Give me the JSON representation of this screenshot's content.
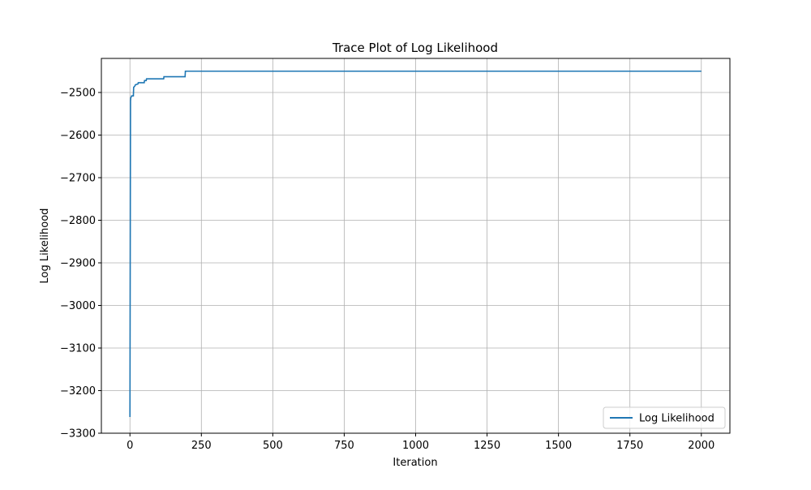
{
  "chart_data": {
    "type": "line",
    "title": "Trace Plot of Log Likelihood",
    "xlabel": "Iteration",
    "ylabel": "Log Likelihood",
    "xlim": [
      -100,
      2100
    ],
    "ylim": [
      -3300,
      -2420
    ],
    "xticks": [
      0,
      250,
      500,
      750,
      1000,
      1250,
      1500,
      1750,
      2000
    ],
    "yticks": [
      -3300,
      -3200,
      -3100,
      -3000,
      -2900,
      -2800,
      -2700,
      -2600,
      -2500
    ],
    "xtick_labels": [
      "0",
      "250",
      "500",
      "750",
      "1000",
      "1250",
      "1500",
      "1750",
      "2000"
    ],
    "ytick_labels": [
      "−3300",
      "−3200",
      "−3100",
      "−3000",
      "−2900",
      "−2800",
      "−2700",
      "−2600",
      "−2500"
    ],
    "grid": true,
    "legend_position": "lower-right",
    "series": [
      {
        "name": "Log Likelihood",
        "color": "#1f77b4",
        "x": [
          0,
          2,
          3,
          5,
          6,
          12,
          13,
          18,
          19,
          28,
          29,
          50,
          51,
          57,
          58,
          118,
          119,
          193,
          194,
          2000
        ],
        "y": [
          -3262,
          -2520,
          -2512,
          -2510,
          -2508,
          -2508,
          -2488,
          -2484,
          -2482,
          -2480,
          -2477,
          -2477,
          -2472,
          -2472,
          -2468,
          -2468,
          -2463,
          -2463,
          -2450,
          -2450
        ]
      }
    ]
  }
}
